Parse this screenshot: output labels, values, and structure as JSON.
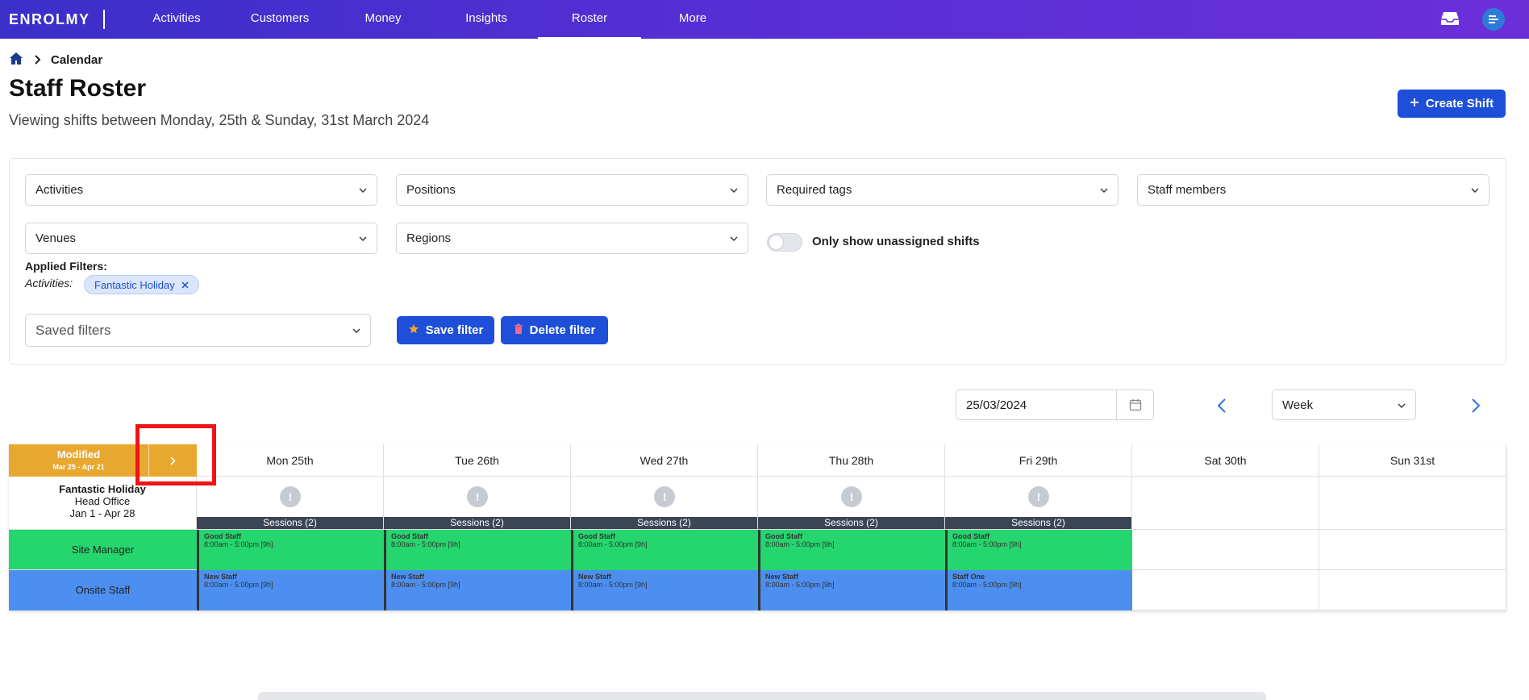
{
  "nav": {
    "logo": "ENROLMY",
    "items": [
      {
        "label": "Activities"
      },
      {
        "label": "Customers"
      },
      {
        "label": "Money"
      },
      {
        "label": "Insights"
      },
      {
        "label": "Roster",
        "active": true
      },
      {
        "label": "More"
      }
    ]
  },
  "breadcrumb": {
    "current": "Calendar"
  },
  "header": {
    "title": "Staff Roster",
    "subtitle": "Viewing shifts between Monday, 25th & Sunday, 31st March 2024",
    "create_shift": "Create Shift"
  },
  "filters": {
    "activities": "Activities",
    "positions": "Positions",
    "required_tags": "Required tags",
    "staff_members": "Staff members",
    "venues": "Venues",
    "regions": "Regions",
    "only_unassigned": "Only show unassigned shifts",
    "only_unassigned_on": false,
    "applied_title": "Applied Filters:",
    "applied_category": "Activities:",
    "applied_chip": "Fantastic Holiday",
    "saved_filters_placeholder": "Saved filters",
    "save_filter": "Save filter",
    "delete_filter": "Delete filter"
  },
  "calendar_controls": {
    "date": "25/03/2024",
    "view": "Week"
  },
  "roster": {
    "modified_title": "Modified",
    "modified_range": "Mar 25 - Apr 21",
    "days": [
      "Mon 25th",
      "Tue 26th",
      "Wed 27th",
      "Thu 28th",
      "Fri 29th",
      "Sat 30th",
      "Sun 31st"
    ],
    "activity": {
      "name": "Fantastic Holiday",
      "venue": "Head Office",
      "dates": "Jan 1 - Apr 28"
    },
    "warn_symbol": "!",
    "sessions": [
      "Sessions (2)",
      "Sessions (2)",
      "Sessions (2)",
      "Sessions (2)",
      "Sessions (2)",
      null,
      null
    ],
    "positions": [
      {
        "name": "Site Manager",
        "color": "#25d56d",
        "shifts": [
          {
            "staff": "Good Staff",
            "time": "8:00am - 5:00pm [9h]"
          },
          {
            "staff": "Good Staff",
            "time": "8:00am - 5:00pm [9h]"
          },
          {
            "staff": "Good Staff",
            "time": "8:00am - 5:00pm [9h]"
          },
          {
            "staff": "Good Staff",
            "time": "8:00am - 5:00pm [9h]"
          },
          {
            "staff": "Good Staff",
            "time": "8:00am - 5:00pm [9h]"
          },
          null,
          null
        ]
      },
      {
        "name": "Onsite Staff",
        "color": "#4d8ff0",
        "shifts": [
          {
            "staff": "New Staff",
            "time": "8:00am - 5:00pm [9h]"
          },
          {
            "staff": "New Staff",
            "time": "8:00am - 5:00pm [9h]"
          },
          {
            "staff": "New Staff",
            "time": "8:00am - 5:00pm [9h]"
          },
          {
            "staff": "New Staff",
            "time": "8:00am - 5:00pm [9h]"
          },
          {
            "staff": "Staff One",
            "time": "8:00am - 5:00pm [9h]"
          },
          null,
          null
        ]
      }
    ]
  },
  "colors": {
    "primary": "#1d4fd8",
    "modified": "#e8a830",
    "highlight": "#f01414"
  }
}
